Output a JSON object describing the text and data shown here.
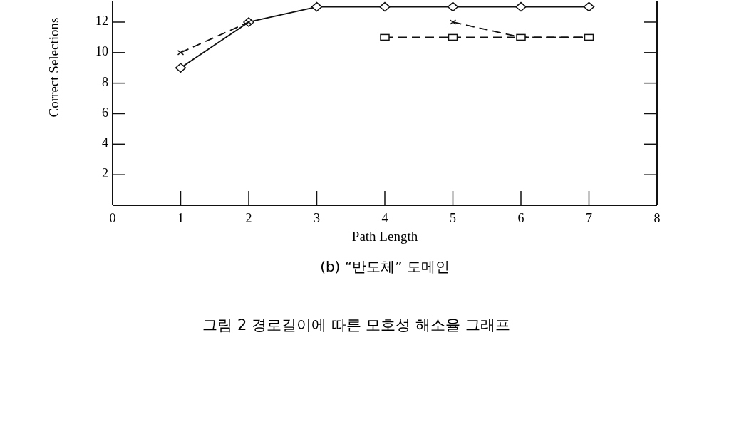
{
  "chart_data": {
    "type": "line",
    "subtitle": "(b) “반도체” 도메인",
    "xlabel": "Path Length",
    "ylabel": "Correct Selections",
    "annotations": [
      "그림 2  경로길이에 따른 모호성 해소율 그래프"
    ],
    "x": [
      1,
      2,
      3,
      4,
      5,
      6,
      7
    ],
    "series": [
      {
        "color": "#111111",
        "marker": "diamond",
        "line_style": "solid",
        "values": [
          9,
          12,
          13,
          13,
          13,
          13,
          13
        ]
      },
      {
        "color": "#111111",
        "marker": "cross",
        "line_style": "dashed",
        "values": [
          10,
          12,
          null,
          null,
          12,
          11,
          11
        ]
      },
      {
        "color": "#111111",
        "marker": "square",
        "line_style": "dashed",
        "values": [
          null,
          null,
          null,
          11,
          11,
          11,
          11
        ]
      }
    ],
    "xlim": [
      0,
      8
    ],
    "xticks": [
      0,
      1,
      2,
      3,
      4,
      5,
      6,
      7,
      8
    ],
    "ylim": [
      0,
      13.4
    ],
    "yticks": [
      2,
      4,
      6,
      8,
      10,
      12
    ],
    "grid": false
  }
}
